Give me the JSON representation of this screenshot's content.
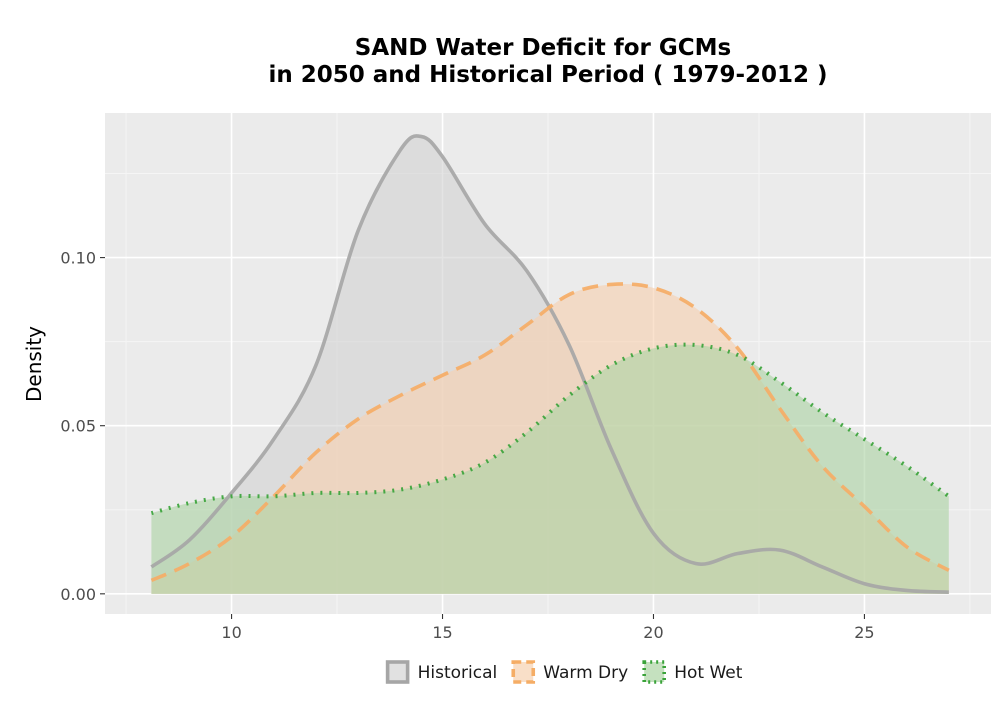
{
  "chart_data": {
    "type": "area",
    "title_line1": "SAND  Water Deficit for GCMs",
    "title_line2": "in 2050 and Historical Period ( 1979-2012 )",
    "xlabel": "",
    "ylabel": "Density",
    "xlim": [
      7.0,
      28.0
    ],
    "ylim": [
      -0.006,
      0.143
    ],
    "x_ticks": [
      10,
      15,
      20,
      25
    ],
    "y_ticks": [
      0.0,
      0.05,
      0.1
    ],
    "y_tick_labels": [
      "0.00",
      "0.05",
      "0.10"
    ],
    "grid": true,
    "legend_position": "bottom",
    "series": [
      {
        "name": "Historical",
        "line_color": "#a6a6a6",
        "fill_color": "#d4d4d4",
        "line_style": "solid",
        "x": [
          8.1,
          9.0,
          10.0,
          11.0,
          12.0,
          13.0,
          14.0,
          14.5,
          15.0,
          16.0,
          17.0,
          18.0,
          19.0,
          20.0,
          21.0,
          22.0,
          23.0,
          24.0,
          25.0,
          26.0,
          27.0
        ],
        "y": [
          0.008,
          0.016,
          0.03,
          0.046,
          0.068,
          0.108,
          0.132,
          0.136,
          0.13,
          0.11,
          0.096,
          0.074,
          0.043,
          0.018,
          0.009,
          0.012,
          0.013,
          0.008,
          0.003,
          0.001,
          0.0005
        ]
      },
      {
        "name": "Warm Dry",
        "line_color": "#f5ad66",
        "fill_color": "#f7d1b0",
        "line_style": "dashed",
        "x": [
          8.1,
          9.0,
          10.0,
          11.0,
          12.0,
          13.0,
          14.0,
          15.0,
          16.0,
          17.0,
          18.0,
          19.0,
          20.0,
          21.0,
          22.0,
          23.0,
          24.0,
          25.0,
          26.0,
          27.0
        ],
        "y": [
          0.004,
          0.009,
          0.017,
          0.029,
          0.042,
          0.052,
          0.059,
          0.065,
          0.071,
          0.08,
          0.089,
          0.092,
          0.091,
          0.085,
          0.073,
          0.055,
          0.038,
          0.026,
          0.014,
          0.007
        ]
      },
      {
        "name": "Hot Wet",
        "line_color": "#3aa33a",
        "fill_color": "#acd4a4",
        "line_style": "dotted",
        "x": [
          8.1,
          9.0,
          10.0,
          11.0,
          12.0,
          13.0,
          14.0,
          15.0,
          16.0,
          17.0,
          18.0,
          19.0,
          20.0,
          21.0,
          22.0,
          23.0,
          24.0,
          25.0,
          26.0,
          27.0
        ],
        "y": [
          0.024,
          0.027,
          0.029,
          0.029,
          0.03,
          0.03,
          0.031,
          0.034,
          0.039,
          0.048,
          0.059,
          0.068,
          0.073,
          0.074,
          0.071,
          0.063,
          0.054,
          0.046,
          0.038,
          0.029
        ]
      }
    ]
  }
}
